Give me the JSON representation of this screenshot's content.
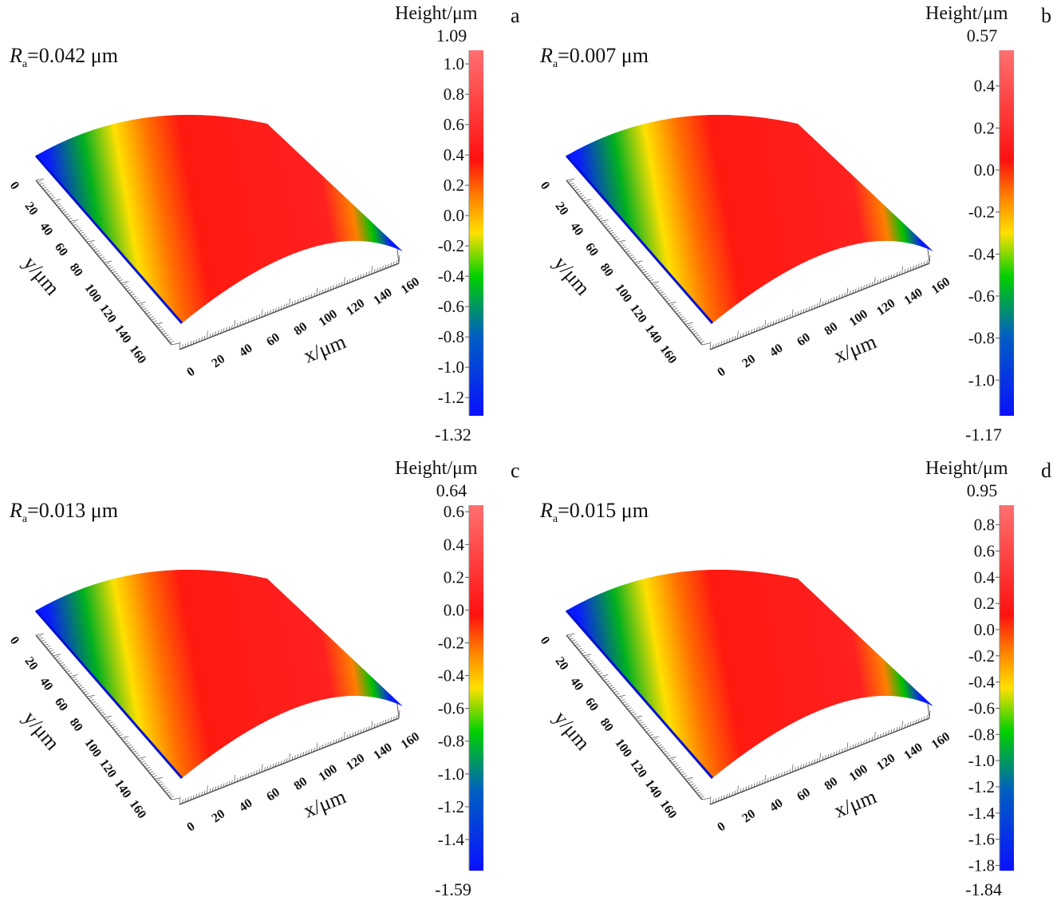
{
  "chart_data": [
    {
      "type": "heatmap",
      "panel": "a",
      "ra_symbol": "R",
      "ra_sub": "a",
      "ra_value": "=0.042 μm",
      "colorbar_title": "Height/μm",
      "zmax": 1.09,
      "zmin": -1.32,
      "zmax_label": "1.09",
      "zmin_label": "-1.32",
      "cticks": [
        1.0,
        0.8,
        0.6,
        0.4,
        0.2,
        0.0,
        -0.2,
        -0.4,
        -0.6,
        -0.8,
        -1.0,
        -1.2
      ],
      "xlabel": "x/μm",
      "ylabel": "y/μm",
      "xticks": [
        0,
        20,
        40,
        60,
        80,
        100,
        120,
        140,
        160
      ],
      "yticks": [
        0,
        20,
        40,
        60,
        80,
        100,
        120,
        140,
        160
      ]
    },
    {
      "type": "heatmap",
      "panel": "b",
      "ra_symbol": "R",
      "ra_sub": "a",
      "ra_value": "=0.007 μm",
      "colorbar_title": "Height/μm",
      "zmax": 0.57,
      "zmin": -1.17,
      "zmax_label": "0.57",
      "zmin_label": "-1.17",
      "cticks": [
        0.4,
        0.2,
        0.0,
        -0.2,
        -0.4,
        -0.6,
        -0.8,
        -1.0
      ],
      "xlabel": "x/μm",
      "ylabel": "y/μm",
      "xticks": [
        0,
        20,
        40,
        60,
        80,
        100,
        120,
        140,
        160
      ],
      "yticks": [
        0,
        20,
        40,
        60,
        80,
        100,
        120,
        140,
        160
      ]
    },
    {
      "type": "heatmap",
      "panel": "c",
      "ra_symbol": "R",
      "ra_sub": "a",
      "ra_value": "=0.013 μm",
      "colorbar_title": "Height/μm",
      "zmax": 0.64,
      "zmin": -1.59,
      "zmax_label": "0.64",
      "zmin_label": "-1.59",
      "cticks": [
        0.6,
        0.4,
        0.2,
        0.0,
        -0.2,
        -0.4,
        -0.6,
        -0.8,
        -1.0,
        -1.2,
        -1.4
      ],
      "xlabel": "x/μm",
      "ylabel": "y/μm",
      "xticks": [
        0,
        20,
        40,
        60,
        80,
        100,
        120,
        140,
        160
      ],
      "yticks": [
        0,
        20,
        40,
        60,
        80,
        100,
        120,
        140,
        160
      ]
    },
    {
      "type": "heatmap",
      "panel": "d",
      "ra_symbol": "R",
      "ra_sub": "a",
      "ra_value": "=0.015 μm",
      "colorbar_title": "Height/μm",
      "zmax": 0.95,
      "zmin": -1.84,
      "zmax_label": "0.95",
      "zmin_label": "-1.84",
      "cticks": [
        0.8,
        0.6,
        0.4,
        0.2,
        0.0,
        -0.2,
        -0.4,
        -0.6,
        -0.8,
        -1.0,
        -1.2,
        -1.4,
        -1.6,
        -1.8
      ],
      "xlabel": "x/μm",
      "ylabel": "y/μm",
      "xticks": [
        0,
        20,
        40,
        60,
        80,
        100,
        120,
        140,
        160
      ],
      "yticks": [
        0,
        20,
        40,
        60,
        80,
        100,
        120,
        140,
        160
      ]
    }
  ],
  "colors": {
    "low": "#0a1aff",
    "mid_low": "#00d000",
    "mid": "#ffe000",
    "high": "#ff1010",
    "top": "#ff7070"
  }
}
